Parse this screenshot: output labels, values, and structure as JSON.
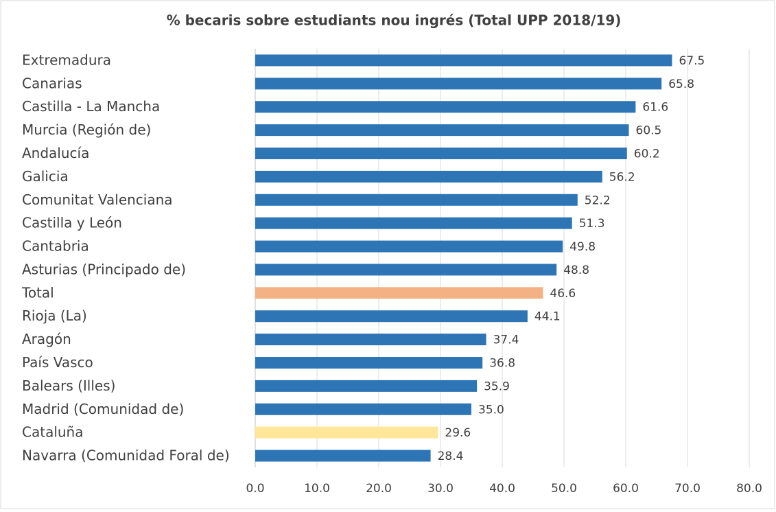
{
  "chart_data": {
    "type": "bar",
    "orientation": "horizontal",
    "title": "% becaris sobre estudiants nou ingrés (Total UPP 2018/19)",
    "categories": [
      "Extremadura",
      "Canarias",
      "Castilla - La Mancha",
      "Murcia (Región de)",
      "Andalucía",
      "Galicia",
      "Comunitat Valenciana",
      "Castilla y León",
      "Cantabria",
      "Asturias (Principado de)",
      "Total",
      "Rioja (La)",
      "Aragón",
      "País Vasco",
      "Balears (Illes)",
      "Madrid (Comunidad de)",
      "Cataluña",
      "Navarra (Comunidad Foral de)"
    ],
    "values": [
      67.5,
      65.8,
      61.6,
      60.5,
      60.2,
      56.2,
      52.2,
      51.3,
      49.8,
      48.8,
      46.6,
      44.1,
      37.4,
      36.8,
      35.9,
      35.0,
      29.6,
      28.4
    ],
    "value_labels": [
      "67.5",
      "65.8",
      "61.6",
      "60.5",
      "60.2",
      "56.2",
      "52.2",
      "51.3",
      "49.8",
      "48.8",
      "46.6",
      "44.1",
      "37.4",
      "36.8",
      "35.9",
      "35.0",
      "29.6",
      "28.4"
    ],
    "colors": [
      "#2e75b6",
      "#2e75b6",
      "#2e75b6",
      "#2e75b6",
      "#2e75b6",
      "#2e75b6",
      "#2e75b6",
      "#2e75b6",
      "#2e75b6",
      "#2e75b6",
      "#f4b183",
      "#2e75b6",
      "#2e75b6",
      "#2e75b6",
      "#2e75b6",
      "#2e75b6",
      "#ffe699",
      "#2e75b6"
    ],
    "xlim": [
      0,
      80
    ],
    "xticks": [
      {
        "value": 0,
        "label": "0.0"
      },
      {
        "value": 10,
        "label": "10.0"
      },
      {
        "value": 20,
        "label": "20.0"
      },
      {
        "value": 30,
        "label": "30.0"
      },
      {
        "value": 40,
        "label": "40.0"
      },
      {
        "value": 50,
        "label": "50.0"
      },
      {
        "value": 60,
        "label": "60.0"
      },
      {
        "value": 70,
        "label": "70.0"
      },
      {
        "value": 80,
        "label": "80.0"
      }
    ],
    "grid": true
  }
}
